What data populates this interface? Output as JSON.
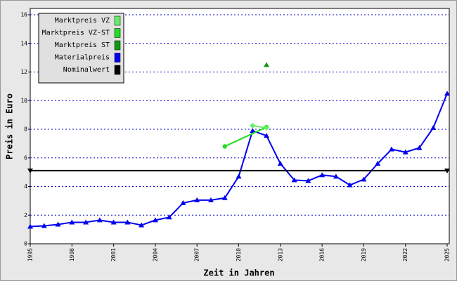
{
  "chart_data": {
    "type": "line",
    "xlabel": "Zeit in Jahren",
    "ylabel": "Preis in Euro",
    "xlim": [
      1995,
      2025
    ],
    "xticks": [
      1995,
      1998,
      2001,
      2004,
      2007,
      2010,
      2013,
      2016,
      2019,
      2022,
      2025
    ],
    "ylim": [
      0,
      16
    ],
    "yticks": [
      0,
      2,
      4,
      6,
      8,
      10,
      12,
      14,
      16
    ],
    "grid": true,
    "legend": "upper left",
    "series": [
      {
        "name": "Marktpreis VZ",
        "color": "#66ee66",
        "marker": "diamond",
        "x": [
          2011,
          2012
        ],
        "values": [
          8.25,
          8.1
        ]
      },
      {
        "name": "Marktpreis VZ-ST",
        "color": "#22dd22",
        "marker": "circle",
        "x": [
          2009,
          2012
        ],
        "values": [
          6.8,
          8.15
        ]
      },
      {
        "name": "Marktpreis ST",
        "color": "#119911",
        "marker": "triangle",
        "x": [
          2012
        ],
        "values": [
          12.5
        ]
      },
      {
        "name": "Materialpreis",
        "color": "#0000ee",
        "marker": "triangle",
        "x": [
          1995,
          1996,
          1997,
          1998,
          1999,
          2000,
          2001,
          2002,
          2003,
          2004,
          2005,
          2006,
          2007,
          2008,
          2009,
          2010,
          2011,
          2012,
          2013,
          2014,
          2015,
          2016,
          2017,
          2018,
          2019,
          2020,
          2021,
          2022,
          2023,
          2024,
          2025
        ],
        "values": [
          1.2,
          1.25,
          1.35,
          1.5,
          1.5,
          1.65,
          1.5,
          1.5,
          1.3,
          1.65,
          1.85,
          2.85,
          3.05,
          3.05,
          3.2,
          4.7,
          7.9,
          7.55,
          5.6,
          4.45,
          4.4,
          4.8,
          4.7,
          4.1,
          4.5,
          5.6,
          6.6,
          6.4,
          6.7,
          8.1,
          10.5
        ]
      },
      {
        "name": "Nominalwert",
        "color": "#000000",
        "marker": "down-triangle",
        "x": [
          1995,
          2025
        ],
        "values": [
          5.11,
          5.11
        ]
      }
    ]
  }
}
